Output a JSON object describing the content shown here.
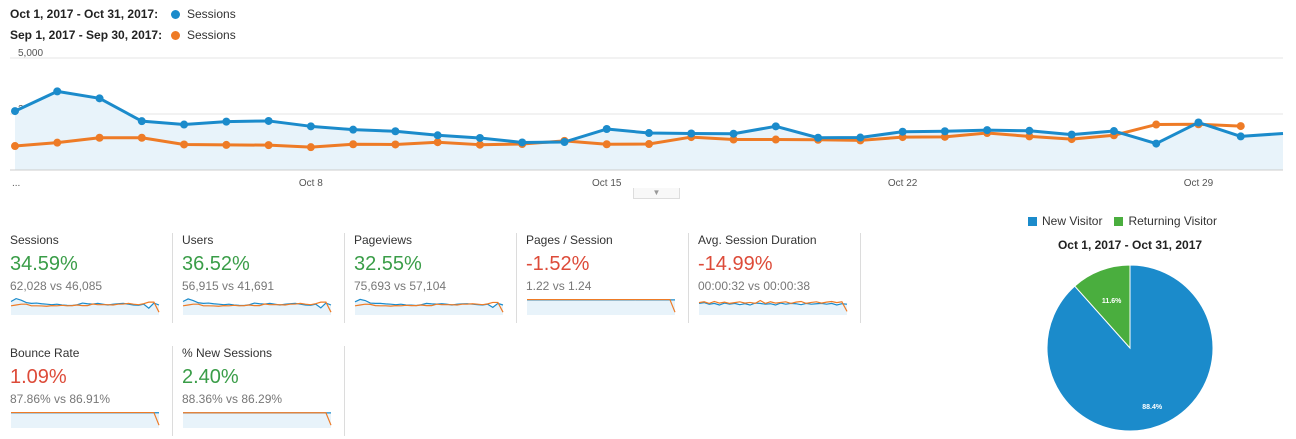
{
  "legend": {
    "current_range": "Oct 1, 2017 - Oct 31, 2017:",
    "previous_range": "Sep 1, 2017 - Sep 30, 2017:",
    "current_series": "Sessions",
    "previous_series": "Sessions",
    "current_color": "#1b8bcb",
    "previous_color": "#ee7b26"
  },
  "chart_data": {
    "type": "line",
    "y_ticks": [
      "5,000",
      "2,500"
    ],
    "ylim": [
      0,
      5000
    ],
    "x_ticks": [
      "...",
      "Oct 8",
      "Oct 15",
      "Oct 22",
      "Oct 29"
    ],
    "series": [
      {
        "name": "Oct 1, 2017 - Oct 31, 2017",
        "color": "#1b8bcb",
        "values": [
          2630,
          3510,
          3200,
          2180,
          2030,
          2160,
          2190,
          1950,
          1800,
          1730,
          1550,
          1430,
          1230,
          1250,
          1830,
          1650,
          1630,
          1620,
          1950,
          1440,
          1450,
          1710,
          1730,
          1780,
          1750,
          1580,
          1740,
          1180,
          2120,
          1500,
          1630
        ]
      },
      {
        "name": "Sep 1, 2017 - Sep 30, 2017",
        "color": "#ee7b26",
        "values": [
          1070,
          1220,
          1440,
          1440,
          1140,
          1120,
          1110,
          1020,
          1150,
          1140,
          1240,
          1130,
          1160,
          1300,
          1150,
          1160,
          1470,
          1360,
          1360,
          1350,
          1320,
          1470,
          1480,
          1650,
          1500,
          1380,
          1550,
          2030,
          2040,
          1960
        ]
      }
    ]
  },
  "metrics": [
    {
      "label": "Sessions",
      "change": "34.59%",
      "vs": "62,028 vs 46,085",
      "trend": "positive",
      "spark_current": [
        0.72,
        0.9,
        0.8,
        0.65,
        0.6,
        0.62,
        0.58,
        0.55,
        0.52,
        0.55,
        0.5,
        0.48,
        0.47,
        0.52,
        0.62,
        0.58,
        0.56,
        0.6,
        0.55,
        0.5,
        0.55,
        0.58,
        0.6,
        0.55,
        0.5,
        0.48,
        0.55,
        0.3,
        0.62,
        0.5
      ],
      "spark_previous": [
        0.45,
        0.5,
        0.55,
        0.55,
        0.45,
        0.45,
        0.44,
        0.42,
        0.46,
        0.45,
        0.48,
        0.45,
        0.46,
        0.5,
        0.46,
        0.46,
        0.56,
        0.52,
        0.52,
        0.52,
        0.5,
        0.55,
        0.56,
        0.6,
        0.55,
        0.52,
        0.58,
        0.68,
        0.68,
        0.05
      ]
    },
    {
      "label": "Users",
      "change": "36.52%",
      "vs": "56,915 vs 41,691",
      "trend": "positive",
      "spark_current": [
        0.72,
        0.88,
        0.78,
        0.64,
        0.6,
        0.62,
        0.58,
        0.55,
        0.52,
        0.55,
        0.5,
        0.48,
        0.47,
        0.52,
        0.62,
        0.58,
        0.56,
        0.6,
        0.55,
        0.5,
        0.55,
        0.58,
        0.6,
        0.55,
        0.5,
        0.48,
        0.55,
        0.32,
        0.62,
        0.5
      ],
      "spark_previous": [
        0.45,
        0.5,
        0.55,
        0.55,
        0.45,
        0.45,
        0.44,
        0.42,
        0.46,
        0.45,
        0.48,
        0.45,
        0.46,
        0.5,
        0.46,
        0.46,
        0.56,
        0.52,
        0.52,
        0.52,
        0.5,
        0.55,
        0.56,
        0.6,
        0.55,
        0.52,
        0.58,
        0.68,
        0.68,
        0.05
      ]
    },
    {
      "label": "Pageviews",
      "change": "32.55%",
      "vs": "75,693 vs 57,104",
      "trend": "positive",
      "spark_current": [
        0.7,
        0.85,
        0.78,
        0.62,
        0.6,
        0.6,
        0.57,
        0.55,
        0.52,
        0.55,
        0.5,
        0.49,
        0.47,
        0.52,
        0.6,
        0.57,
        0.56,
        0.58,
        0.55,
        0.5,
        0.55,
        0.57,
        0.58,
        0.55,
        0.52,
        0.5,
        0.55,
        0.35,
        0.6,
        0.5
      ],
      "spark_previous": [
        0.45,
        0.5,
        0.55,
        0.54,
        0.46,
        0.45,
        0.45,
        0.43,
        0.46,
        0.45,
        0.48,
        0.46,
        0.46,
        0.5,
        0.46,
        0.46,
        0.55,
        0.52,
        0.52,
        0.52,
        0.5,
        0.55,
        0.55,
        0.58,
        0.55,
        0.52,
        0.57,
        0.66,
        0.66,
        0.05
      ]
    },
    {
      "label": "Pages / Session",
      "change": "-1.52%",
      "vs": "1.22 vs 1.24",
      "trend": "negative",
      "spark_current": [
        0.82,
        0.82,
        0.83,
        0.82,
        0.82,
        0.82,
        0.83,
        0.82,
        0.82,
        0.82,
        0.82,
        0.83,
        0.82,
        0.82,
        0.82,
        0.82,
        0.82,
        0.83,
        0.82,
        0.82,
        0.82,
        0.82,
        0.83,
        0.82,
        0.82,
        0.82,
        0.82,
        0.82,
        0.82,
        0.82
      ],
      "spark_previous": [
        0.84,
        0.84,
        0.84,
        0.84,
        0.84,
        0.84,
        0.84,
        0.84,
        0.84,
        0.84,
        0.84,
        0.84,
        0.84,
        0.84,
        0.84,
        0.84,
        0.84,
        0.84,
        0.84,
        0.84,
        0.84,
        0.84,
        0.84,
        0.84,
        0.84,
        0.84,
        0.84,
        0.84,
        0.84,
        0.05
      ]
    },
    {
      "label": "Avg. Session Duration",
      "change": "-14.99%",
      "vs": "00:00:32 vs 00:00:38",
      "trend": "negative",
      "spark_current": [
        0.6,
        0.65,
        0.55,
        0.6,
        0.5,
        0.62,
        0.55,
        0.6,
        0.52,
        0.58,
        0.5,
        0.62,
        0.6,
        0.55,
        0.58,
        0.5,
        0.62,
        0.55,
        0.6,
        0.58,
        0.52,
        0.6,
        0.55,
        0.58,
        0.6,
        0.55,
        0.6,
        0.5,
        0.58,
        0.55
      ],
      "spark_previous": [
        0.65,
        0.7,
        0.6,
        0.72,
        0.62,
        0.68,
        0.6,
        0.65,
        0.7,
        0.62,
        0.66,
        0.6,
        0.78,
        0.6,
        0.7,
        0.62,
        0.66,
        0.7,
        0.6,
        0.68,
        0.72,
        0.6,
        0.66,
        0.7,
        0.62,
        0.68,
        0.72,
        0.65,
        0.7,
        0.1
      ]
    },
    {
      "label": "Bounce Rate",
      "change": "1.09%",
      "vs": "87.86% vs 86.91%",
      "trend": "negative",
      "spark_current": [
        0.83,
        0.83,
        0.83,
        0.83,
        0.83,
        0.83,
        0.83,
        0.83,
        0.83,
        0.83,
        0.83,
        0.83,
        0.83,
        0.83,
        0.83,
        0.83,
        0.83,
        0.83,
        0.83,
        0.83,
        0.83,
        0.83,
        0.83,
        0.83,
        0.83,
        0.83,
        0.83,
        0.83,
        0.83,
        0.83
      ],
      "spark_previous": [
        0.84,
        0.84,
        0.84,
        0.84,
        0.84,
        0.84,
        0.84,
        0.84,
        0.84,
        0.84,
        0.84,
        0.84,
        0.84,
        0.84,
        0.84,
        0.84,
        0.84,
        0.84,
        0.84,
        0.84,
        0.84,
        0.84,
        0.84,
        0.84,
        0.84,
        0.84,
        0.84,
        0.84,
        0.84,
        0.05
      ]
    },
    {
      "label": "% New Sessions",
      "change": "2.40%",
      "vs": "88.36% vs 86.29%",
      "trend": "positive",
      "spark_current": [
        0.82,
        0.82,
        0.82,
        0.82,
        0.82,
        0.82,
        0.82,
        0.82,
        0.82,
        0.82,
        0.82,
        0.82,
        0.82,
        0.82,
        0.82,
        0.82,
        0.82,
        0.82,
        0.82,
        0.82,
        0.82,
        0.82,
        0.82,
        0.82,
        0.82,
        0.82,
        0.82,
        0.82,
        0.82,
        0.82
      ],
      "spark_previous": [
        0.83,
        0.83,
        0.83,
        0.83,
        0.83,
        0.83,
        0.83,
        0.83,
        0.83,
        0.83,
        0.83,
        0.83,
        0.83,
        0.83,
        0.83,
        0.83,
        0.83,
        0.83,
        0.83,
        0.83,
        0.83,
        0.83,
        0.83,
        0.83,
        0.83,
        0.83,
        0.83,
        0.83,
        0.83,
        0.05
      ]
    }
  ],
  "pie": {
    "title": "Oct 1, 2017 - Oct 31, 2017",
    "legend_new": "New Visitor",
    "legend_returning": "Returning Visitor",
    "slices": [
      {
        "label": "New Visitor",
        "value": 88.4,
        "display": "88.4%",
        "color": "#1b8bcb"
      },
      {
        "label": "Returning Visitor",
        "value": 11.6,
        "display": "11.6%",
        "color": "#4aae3e"
      }
    ]
  }
}
